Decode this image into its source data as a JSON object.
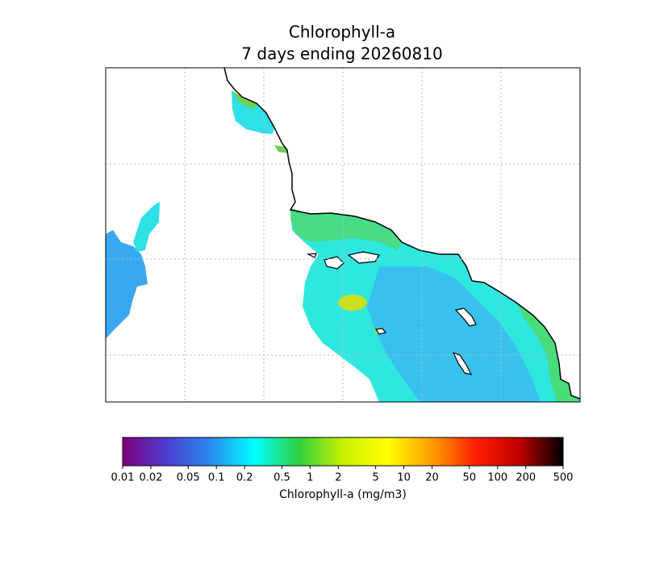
{
  "title": "Chlorophyll-a",
  "subtitle": "7 days ending 20260810",
  "colorbar": {
    "label": "Chlorophyll-a (mg/m3)",
    "scale": "log",
    "lim": [
      0.01,
      500
    ],
    "ticks": [
      0.01,
      0.02,
      0.05,
      0.1,
      0.2,
      0.5,
      1,
      2,
      5,
      10,
      20,
      50,
      100,
      200,
      500
    ],
    "colors": [
      "#7f007f",
      "#4a3fd0",
      "#2a8af0",
      "#00ffff",
      "#30d040",
      "#c8f000",
      "#ffff00",
      "#ffa000",
      "#ff2000",
      "#c00000",
      "#000000"
    ]
  }
}
